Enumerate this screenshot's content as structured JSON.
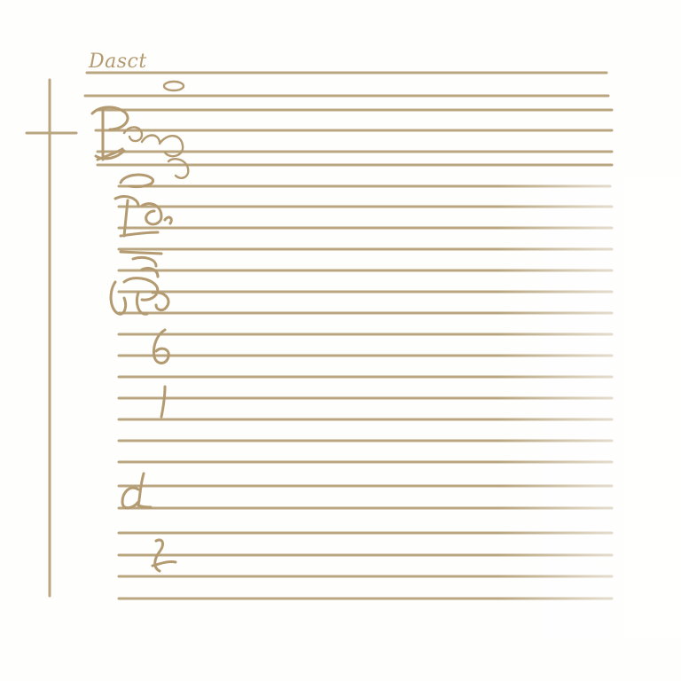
{
  "page": {
    "title": "Dasct",
    "background_color": "#fefefd",
    "ink_color": "#b39a70",
    "rule_color": "#b9a57f"
  },
  "marks": [
    {
      "name": "oval-note-mark"
    },
    {
      "name": "scribble-b-mark"
    },
    {
      "name": "scribble-cluster-mark"
    },
    {
      "name": "scribble-o-mark"
    },
    {
      "name": "scribble-cb-mark"
    },
    {
      "name": "scribble-stack-mark"
    },
    {
      "name": "digit-six-mark"
    },
    {
      "name": "digit-one-mark"
    },
    {
      "name": "scribble-a-mark"
    },
    {
      "name": "scribble-l-mark"
    }
  ]
}
